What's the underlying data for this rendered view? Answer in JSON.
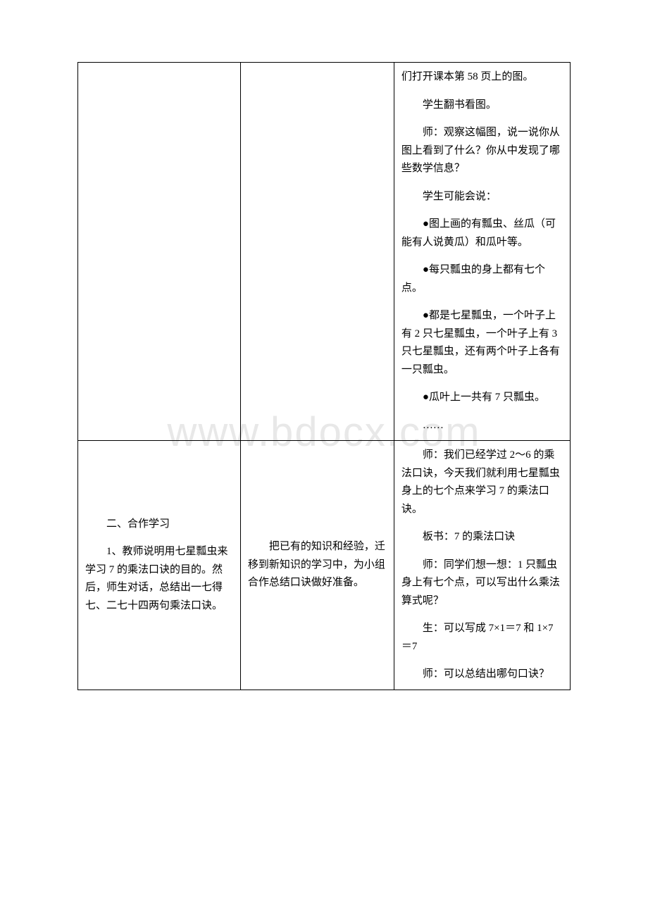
{
  "watermark": "www.bdocx.com",
  "row1": {
    "col1": "",
    "col2": "",
    "col3": {
      "p1": "们打开课本第 58 页上的图。",
      "p2": "学生翻书看图。",
      "p3": "师：观察这幅图，说一说你从图上看到了什么？你从中发现了哪些数学信息？",
      "p4": "学生可能会说：",
      "p5": "●图上画的有瓢虫、丝瓜（可能有人说黄瓜）和瓜叶等。",
      "p6": "●每只瓢虫的身上都有七个点。",
      "p7": "●都是七星瓢虫，一个叶子上有 2 只七星瓢虫，一个叶子上有 3 只七星瓢虫，还有两个叶子上各有一只瓢虫。",
      "p8": "●瓜叶上一共有 7 只瓢虫。",
      "p9": "……"
    }
  },
  "row2": {
    "col1": {
      "p1": "二、合作学习",
      "p2": "1、教师说明用七星瓢虫来学习 7 的乘法口诀的目的。然后，师生对话，总结出一七得七、二七十四两句乘法口诀。"
    },
    "col2": {
      "p1": "把已有的知识和经验，迁移到新知识的学习中，为小组合作总结口诀做好准备。"
    },
    "col3": {
      "p1": "师：我们已经学过 2～6 的乘法口诀，今天我们就利用七星瓢虫身上的七个点来学习 7 的乘法口诀。",
      "p2": "板书：7 的乘法口诀",
      "p3": "师：同学们想一想：1 只瓢虫身上有七个点，可以写出什么乘法算式呢？",
      "p4": "生：可以写成 7×1＝7 和 1×7＝7",
      "p5": "师：可以总结出哪句口诀？"
    }
  }
}
